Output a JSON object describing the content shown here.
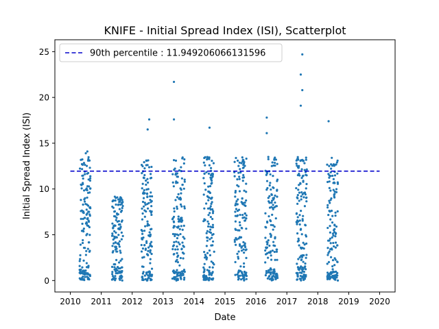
{
  "chart_data": {
    "type": "scatter",
    "title": "KNIFE - Initial Spread Index (ISI), Scatterplot",
    "xlabel": "Date",
    "ylabel": "Initial Spread Index (ISI)",
    "xlim": [
      2009.5,
      2020.5
    ],
    "ylim": [
      -1.25,
      26.3
    ],
    "x_ticks": [
      2010,
      2011,
      2012,
      2013,
      2014,
      2015,
      2016,
      2017,
      2018,
      2019,
      2020
    ],
    "x_tick_labels": [
      "2010",
      "2011",
      "2012",
      "2013",
      "2014",
      "2015",
      "2016",
      "2017",
      "2018",
      "2019",
      "2020"
    ],
    "y_ticks": [
      0,
      5,
      10,
      15,
      20,
      25
    ],
    "y_tick_labels": [
      "0",
      "5",
      "10",
      "15",
      "20",
      "25"
    ],
    "grid": false,
    "legend_position": "upper-left",
    "colors": {
      "points": "#1f77b4",
      "threshold": "#0000cc"
    },
    "reference_line": {
      "label": "90th percentile : 11.949206066131596",
      "y": 11.949206066131596,
      "x_range": [
        2010,
        2020
      ],
      "style": "dashed"
    },
    "series": [
      {
        "seasons": [
          {
            "x_start": 2010.3,
            "x_end": 2010.65,
            "n": 150,
            "max": 14.1,
            "low_cluster_max": 1.2
          },
          {
            "x_start": 2011.35,
            "x_end": 2011.7,
            "n": 140,
            "max": 9.3,
            "low_cluster_max": 1.5
          },
          {
            "x_start": 2012.3,
            "x_end": 2012.65,
            "n": 145,
            "max": 17.6,
            "low_cluster_max": 1.0
          },
          {
            "x_start": 2013.3,
            "x_end": 2013.7,
            "n": 150,
            "max": 21.7,
            "low_cluster_max": 1.2
          },
          {
            "x_start": 2014.3,
            "x_end": 2014.65,
            "n": 145,
            "max": 16.7,
            "low_cluster_max": 1.2
          },
          {
            "x_start": 2015.3,
            "x_end": 2015.7,
            "n": 150,
            "max": 14.6,
            "low_cluster_max": 1.0
          },
          {
            "x_start": 2016.3,
            "x_end": 2016.7,
            "n": 150,
            "max": 17.8,
            "low_cluster_max": 1.2
          },
          {
            "x_start": 2017.3,
            "x_end": 2017.65,
            "n": 155,
            "max": 24.7,
            "low_cluster_max": 1.5
          },
          {
            "x_start": 2018.3,
            "x_end": 2018.65,
            "n": 145,
            "max": 17.4,
            "low_cluster_max": 1.0
          }
        ],
        "highlight_points": [
          {
            "x": 2010.55,
            "y": 14.1
          },
          {
            "x": 2010.5,
            "y": 13.9
          },
          {
            "x": 2012.55,
            "y": 17.6
          },
          {
            "x": 2012.5,
            "y": 16.5
          },
          {
            "x": 2013.35,
            "y": 21.7
          },
          {
            "x": 2013.35,
            "y": 17.6
          },
          {
            "x": 2014.5,
            "y": 16.7
          },
          {
            "x": 2016.35,
            "y": 17.8
          },
          {
            "x": 2016.35,
            "y": 16.1
          },
          {
            "x": 2017.5,
            "y": 24.7
          },
          {
            "x": 2017.45,
            "y": 22.5
          },
          {
            "x": 2017.5,
            "y": 20.8
          },
          {
            "x": 2017.45,
            "y": 19.1
          },
          {
            "x": 2018.35,
            "y": 17.4
          }
        ]
      }
    ]
  }
}
